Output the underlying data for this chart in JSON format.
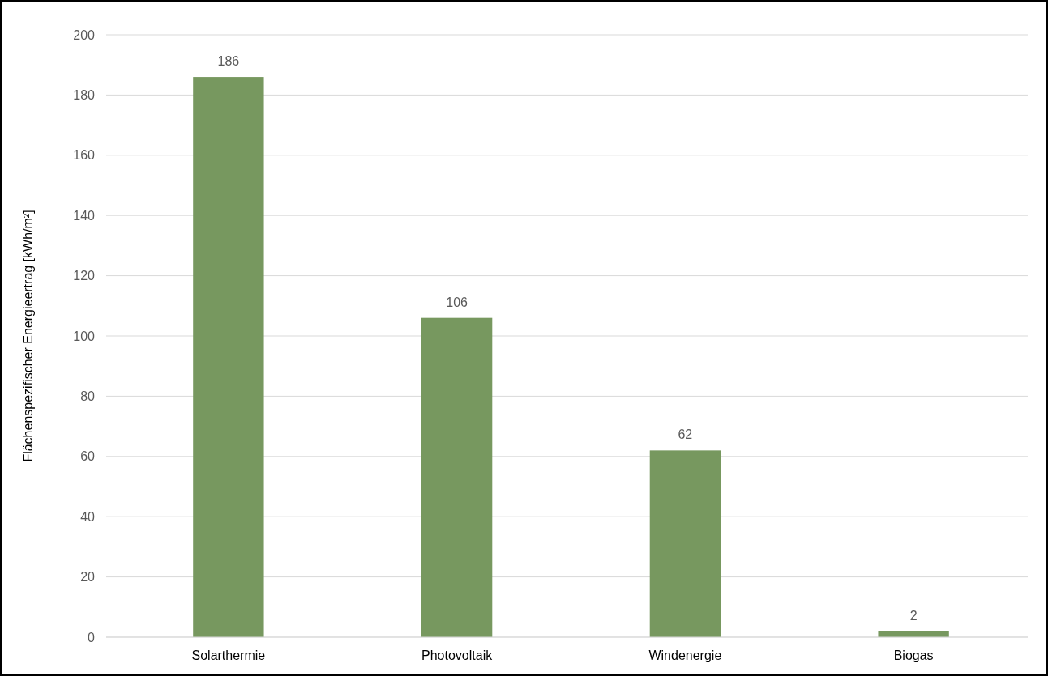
{
  "chart_data": {
    "type": "bar",
    "ylabel": "Flächenspezifischer Energieertrag [kWh/m²]",
    "categories": [
      "Solarthermie",
      "Photovoltaik",
      "Windenergie",
      "Biogas"
    ],
    "values": [
      186,
      106,
      62,
      2
    ],
    "color": "#77985f",
    "ylim": [
      0,
      200
    ],
    "yticks": [
      0,
      20,
      40,
      60,
      80,
      100,
      120,
      140,
      160,
      180,
      200
    ],
    "grid": "y",
    "data_labels": true
  }
}
